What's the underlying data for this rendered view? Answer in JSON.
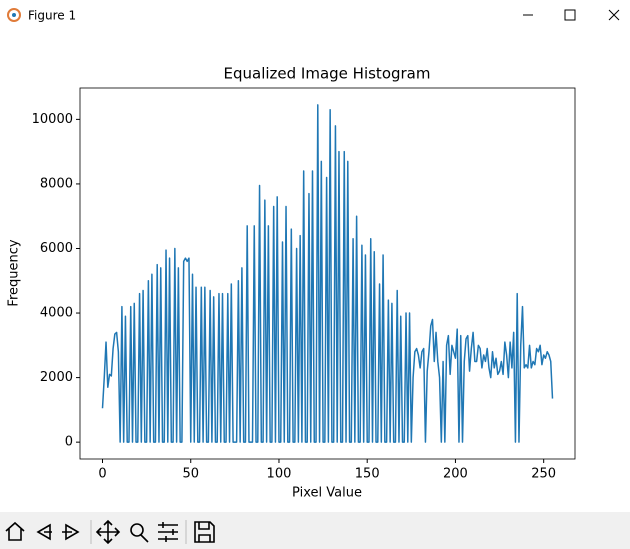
{
  "window": {
    "title": "Figure 1"
  },
  "chart_data": {
    "type": "line",
    "title": "Equalized Image Histogram",
    "xlabel": "Pixel Value",
    "ylabel": "Frequency",
    "x": [
      0,
      1,
      2,
      3,
      4,
      5,
      6,
      7,
      8,
      9,
      10,
      11,
      12,
      13,
      14,
      15,
      16,
      17,
      18,
      19,
      20,
      21,
      22,
      23,
      24,
      25,
      26,
      27,
      28,
      29,
      30,
      31,
      32,
      33,
      34,
      35,
      36,
      37,
      38,
      39,
      40,
      41,
      42,
      43,
      44,
      45,
      46,
      47,
      48,
      49,
      50,
      51,
      52,
      53,
      54,
      55,
      56,
      57,
      58,
      59,
      60,
      61,
      62,
      63,
      64,
      65,
      66,
      67,
      68,
      69,
      70,
      71,
      72,
      73,
      74,
      75,
      76,
      77,
      78,
      79,
      80,
      81,
      82,
      83,
      84,
      85,
      86,
      87,
      88,
      89,
      90,
      91,
      92,
      93,
      94,
      95,
      96,
      97,
      98,
      99,
      100,
      101,
      102,
      103,
      104,
      105,
      106,
      107,
      108,
      109,
      110,
      111,
      112,
      113,
      114,
      115,
      116,
      117,
      118,
      119,
      120,
      121,
      122,
      123,
      124,
      125,
      126,
      127,
      128,
      129,
      130,
      131,
      132,
      133,
      134,
      135,
      136,
      137,
      138,
      139,
      140,
      141,
      142,
      143,
      144,
      145,
      146,
      147,
      148,
      149,
      150,
      151,
      152,
      153,
      154,
      155,
      156,
      157,
      158,
      159,
      160,
      161,
      162,
      163,
      164,
      165,
      166,
      167,
      168,
      169,
      170,
      171,
      172,
      173,
      174,
      175,
      176,
      177,
      178,
      179,
      180,
      181,
      182,
      183,
      184,
      185,
      186,
      187,
      188,
      189,
      190,
      191,
      192,
      193,
      194,
      195,
      196,
      197,
      198,
      199,
      200,
      201,
      202,
      203,
      204,
      205,
      206,
      207,
      208,
      209,
      210,
      211,
      212,
      213,
      214,
      215,
      216,
      217,
      218,
      219,
      220,
      221,
      222,
      223,
      224,
      225,
      226,
      227,
      228,
      229,
      230,
      231,
      232,
      233,
      234,
      235,
      236,
      237,
      238,
      239,
      240,
      241,
      242,
      243,
      244,
      245,
      246,
      247,
      248,
      249,
      250,
      251,
      252,
      253,
      254,
      255
    ],
    "values": [
      1050,
      2000,
      3100,
      1700,
      2100,
      2050,
      2900,
      3350,
      3400,
      2800,
      0,
      4200,
      0,
      3900,
      0,
      0,
      4200,
      0,
      4300,
      0,
      0,
      4600,
      0,
      4700,
      0,
      0,
      5000,
      0,
      5200,
      0,
      0,
      5500,
      0,
      5400,
      0,
      0,
      5950,
      0,
      5700,
      0,
      0,
      6000,
      0,
      5400,
      0,
      0,
      5600,
      5700,
      5600,
      5700,
      0,
      5200,
      0,
      4800,
      0,
      0,
      4800,
      0,
      4800,
      0,
      0,
      4700,
      0,
      4500,
      0,
      0,
      4600,
      0,
      4600,
      0,
      0,
      4600,
      0,
      4900,
      0,
      0,
      0,
      5000,
      0,
      5400,
      0,
      0,
      6700,
      0,
      0,
      0,
      6700,
      0,
      0,
      7950,
      0,
      0,
      7500,
      0,
      6700,
      0,
      0,
      7300,
      0,
      7600,
      0,
      0,
      6200,
      0,
      7300,
      0,
      0,
      6600,
      0,
      0,
      6000,
      0,
      6400,
      0,
      8400,
      0,
      0,
      7700,
      0,
      8400,
      0,
      0,
      10450,
      0,
      8700,
      0,
      0,
      8200,
      0,
      10300,
      0,
      0,
      9800,
      0,
      9000,
      0,
      0,
      9000,
      0,
      8700,
      0,
      0,
      6300,
      0,
      7000,
      0,
      0,
      6100,
      0,
      5800,
      0,
      0,
      6300,
      0,
      5900,
      0,
      0,
      4900,
      0,
      5800,
      0,
      0,
      4400,
      0,
      4300,
      0,
      0,
      4700,
      0,
      3900,
      0,
      0,
      4000,
      0,
      4000,
      0,
      2000,
      2800,
      2900,
      2700,
      2300,
      2800,
      2900,
      0,
      2200,
      2800,
      3600,
      3800,
      2500,
      3400,
      2500,
      2000,
      0,
      2500,
      0,
      3000,
      3300,
      2100,
      3000,
      2800,
      2600,
      3500,
      0,
      3300,
      0,
      2500,
      3200,
      3300,
      2200,
      2900,
      3400,
      2500,
      2500,
      3000,
      2900,
      2300,
      2700,
      2500,
      2900,
      2300,
      2000,
      2800,
      2300,
      2600,
      2100,
      2200,
      2500,
      2100,
      3100,
      2700,
      2000,
      3100,
      2300,
      3400,
      0,
      4600,
      0,
      3000,
      4200,
      2300,
      2400,
      2300,
      3000,
      2300,
      2500,
      2400,
      2900,
      2800,
      3000,
      2400,
      2700,
      2600,
      2800,
      2700,
      2500,
      1350
    ],
    "color": "#1f77b4",
    "xlim": [
      -12.75,
      267.75
    ],
    "ylim": [
      -522,
      10972
    ],
    "xticks": [
      0,
      50,
      100,
      150,
      200,
      250
    ],
    "yticks": [
      0,
      2000,
      4000,
      6000,
      8000,
      10000
    ],
    "grid": false
  }
}
